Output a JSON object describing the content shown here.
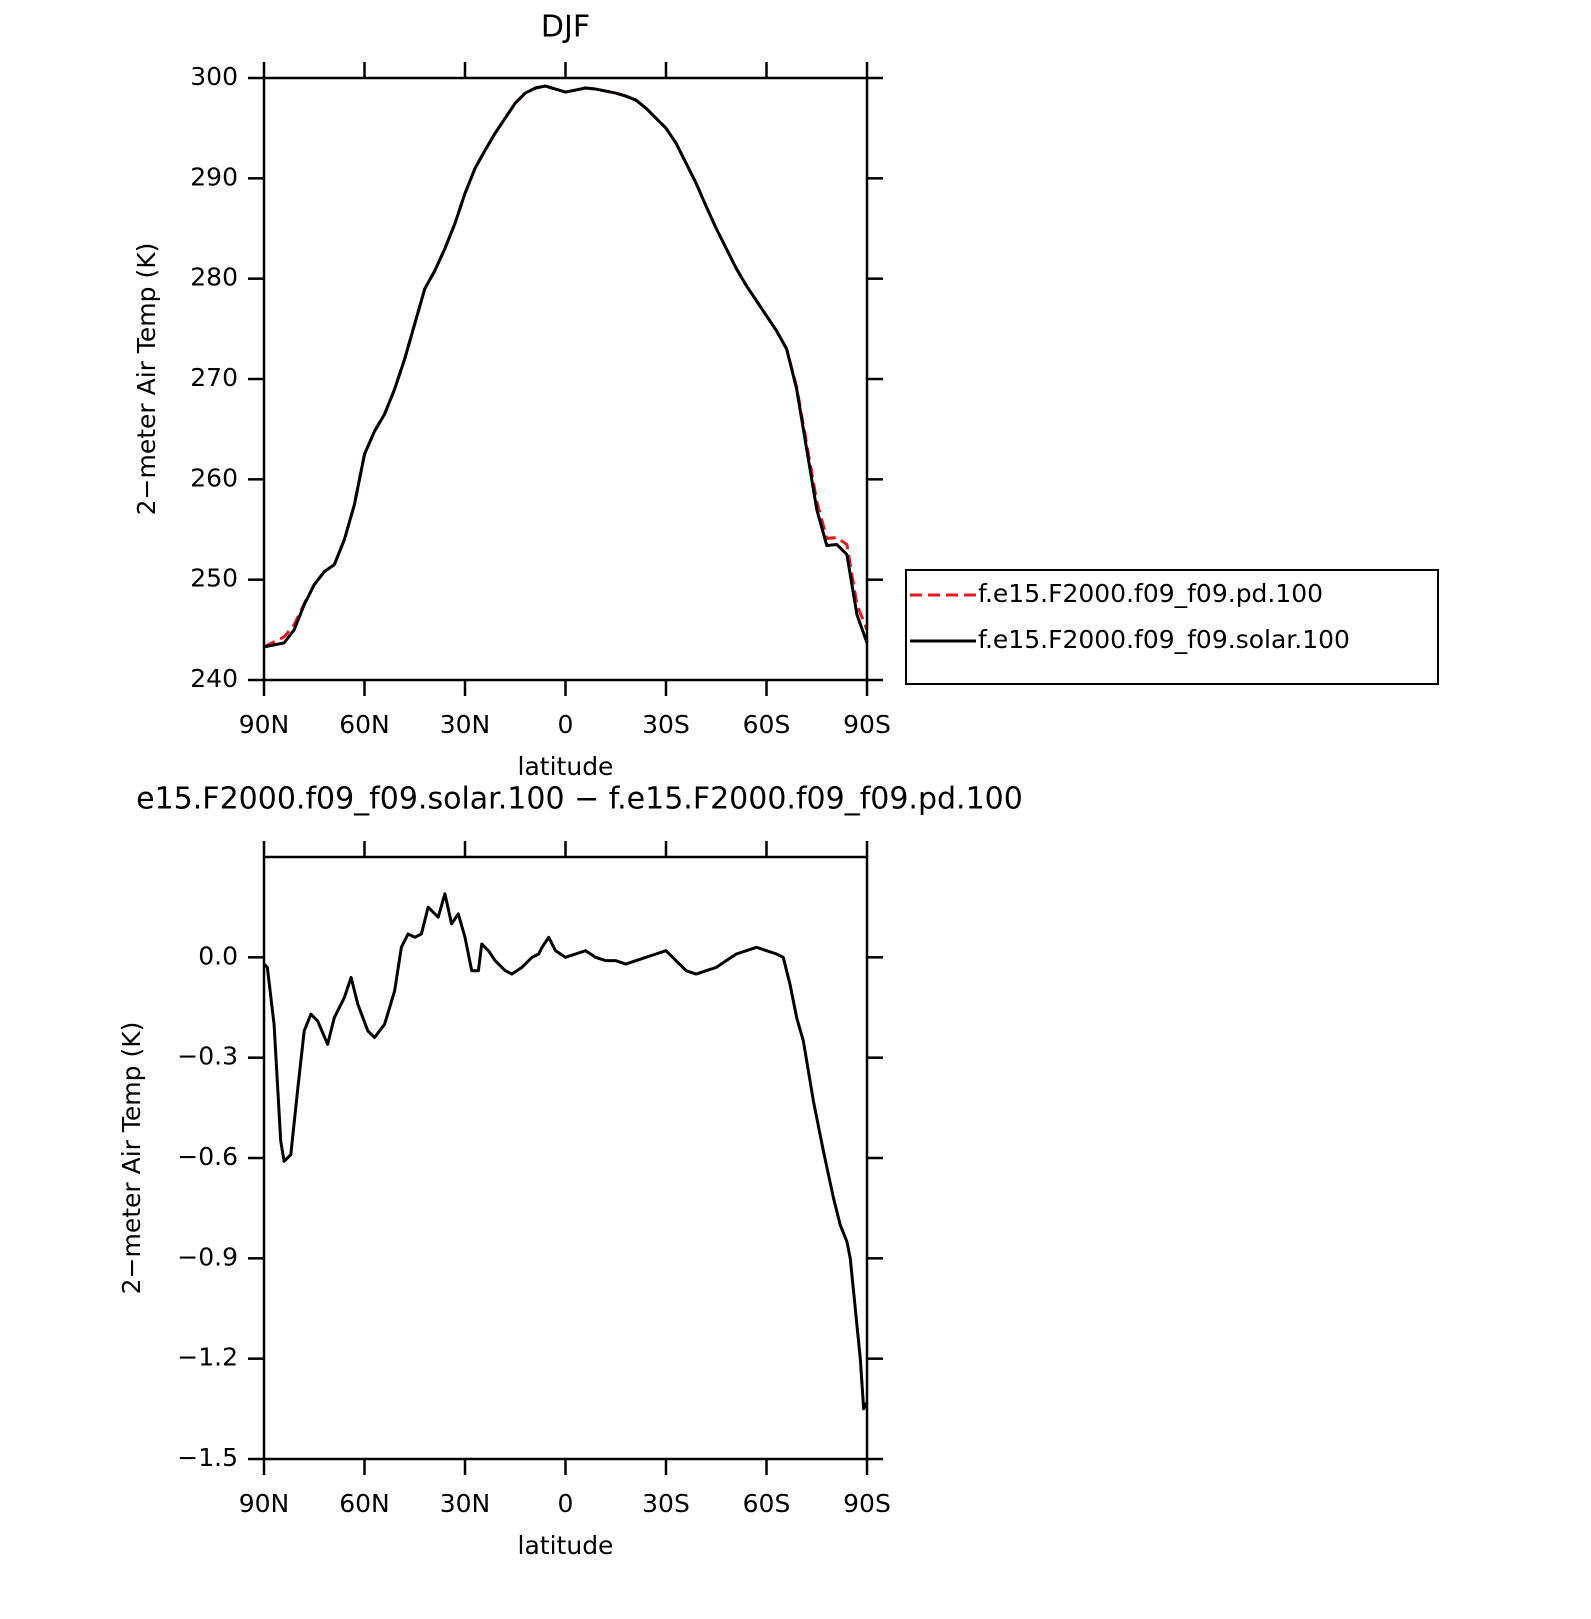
{
  "chart_data": [
    {
      "type": "line",
      "title": "DJF",
      "xlabel": "latitude",
      "ylabel": "2−meter Air Temp (K)",
      "x": [
        90,
        87,
        84,
        81,
        78,
        75,
        72,
        69,
        66,
        63,
        60,
        57,
        54,
        51,
        48,
        45,
        42,
        39,
        36,
        33,
        30,
        27,
        24,
        21,
        18,
        15,
        12,
        9,
        6,
        3,
        0,
        -3,
        -6,
        -9,
        -12,
        -15,
        -18,
        -21,
        -24,
        -27,
        -30,
        -33,
        -36,
        -39,
        -42,
        -45,
        -48,
        -51,
        -54,
        -57,
        -60,
        -63,
        -66,
        -69,
        -72,
        -75,
        -78,
        -81,
        -84,
        -87,
        -90
      ],
      "series": [
        {
          "name": "f.e15.F2000.f09_f09.pd.100",
          "color": "#e41a1c",
          "dashed": true,
          "values": [
            243.3,
            243.8,
            244.3,
            245.5,
            247.6,
            249.5,
            250.8,
            251.5,
            254,
            257.5,
            262.5,
            264.8,
            266.5,
            269,
            272,
            275.5,
            279,
            280.8,
            283,
            285.5,
            288.5,
            291,
            292.8,
            294.5,
            296,
            297.5,
            298.5,
            299,
            299.2,
            298.9,
            298.6,
            298.8,
            299,
            298.9,
            298.7,
            298.5,
            298.2,
            297.8,
            297,
            296,
            295,
            293.5,
            291.5,
            289.5,
            287.2,
            285,
            283,
            281,
            279.3,
            277.8,
            276.3,
            274.8,
            273,
            269.2,
            263.5,
            257.8,
            254.1,
            254.2,
            253.5,
            247.5,
            245
          ]
        },
        {
          "name": "f.e15.F2000.f09_f09.solar.100",
          "color": "#000000",
          "dashed": false,
          "values": [
            243.3,
            243.5,
            243.7,
            245,
            247.5,
            249.5,
            250.8,
            251.5,
            254,
            257.5,
            262.5,
            264.8,
            266.5,
            269,
            272,
            275.5,
            279,
            280.8,
            283,
            285.5,
            288.5,
            291,
            292.8,
            294.5,
            296,
            297.5,
            298.5,
            299,
            299.2,
            298.9,
            298.6,
            298.8,
            299,
            298.9,
            298.7,
            298.5,
            298.2,
            297.8,
            297,
            296,
            295,
            293.5,
            291.5,
            289.5,
            287.2,
            285,
            283,
            281,
            279.3,
            277.8,
            276.3,
            274.8,
            273,
            269,
            263,
            257,
            253.4,
            253.5,
            252.5,
            246.5,
            243.7
          ]
        }
      ],
      "xlim": [
        90,
        -90
      ],
      "xticks": [
        {
          "value": 90,
          "label": "90N"
        },
        {
          "value": 60,
          "label": "60N"
        },
        {
          "value": 30,
          "label": "30N"
        },
        0,
        {
          "value": -30,
          "label": "30S"
        },
        {
          "value": -60,
          "label": "60S"
        },
        {
          "value": -90,
          "label": "90S"
        }
      ],
      "ylim": [
        240,
        300
      ],
      "yticks": [
        240,
        250,
        260,
        270,
        280,
        290,
        300
      ],
      "legend": "outside-right"
    },
    {
      "type": "line",
      "title": "e15.F2000.f09_f09.solar.100 − f.e15.F2000.f09_f09.pd.100",
      "xlabel": "latitude",
      "ylabel": "2−meter Air Temp (K)",
      "x": [
        90,
        89,
        87,
        85,
        84,
        82,
        80,
        78,
        76,
        74,
        71,
        69,
        66,
        64,
        62,
        59,
        57,
        54,
        51,
        49,
        47,
        45,
        43,
        41,
        38,
        36,
        34,
        32,
        30,
        28,
        26,
        25,
        23,
        21,
        18,
        16,
        13,
        10,
        8,
        7,
        5,
        3,
        0,
        -3,
        -6,
        -9,
        -12,
        -15,
        -18,
        -21,
        -24,
        -27,
        -30,
        -33,
        -36,
        -39,
        -42,
        -45,
        -48,
        -51,
        -54,
        -57,
        -60,
        -63,
        -65,
        -67,
        -69,
        -71,
        -74,
        -77,
        -80,
        -82,
        -84,
        -85,
        -86,
        -87,
        -88,
        -89,
        -90
      ],
      "series": [
        {
          "color": "#000000",
          "dashed": false,
          "values": [
            -0.02,
            -0.03,
            -0.2,
            -0.55,
            -0.61,
            -0.59,
            -0.4,
            -0.22,
            -0.17,
            -0.19,
            -0.26,
            -0.18,
            -0.12,
            -0.06,
            -0.14,
            -0.22,
            -0.24,
            -0.2,
            -0.1,
            0.03,
            0.07,
            0.06,
            0.07,
            0.15,
            0.12,
            0.19,
            0.1,
            0.13,
            0.06,
            -0.04,
            -0.04,
            0.04,
            0.02,
            -0.01,
            -0.04,
            -0.05,
            -0.03,
            0.0,
            0.01,
            0.03,
            0.06,
            0.02,
            0.0,
            0.01,
            0.02,
            0.0,
            -0.01,
            -0.01,
            -0.02,
            -0.01,
            0.0,
            0.01,
            0.02,
            -0.01,
            -0.04,
            -0.05,
            -0.04,
            -0.03,
            -0.01,
            0.01,
            0.02,
            0.03,
            0.02,
            0.01,
            0.0,
            -0.08,
            -0.18,
            -0.25,
            -0.43,
            -0.58,
            -0.72,
            -0.8,
            -0.85,
            -0.9,
            -1.0,
            -1.1,
            -1.2,
            -1.35,
            -1.33
          ]
        }
      ],
      "xlim": [
        90,
        -90
      ],
      "xticks": [
        {
          "value": 90,
          "label": "90N"
        },
        {
          "value": 60,
          "label": "60N"
        },
        {
          "value": 30,
          "label": "30N"
        },
        0,
        {
          "value": -30,
          "label": "30S"
        },
        {
          "value": -60,
          "label": "60S"
        },
        {
          "value": -90,
          "label": "90S"
        }
      ],
      "ylim": [
        -1.5,
        0.3
      ],
      "yticks": [
        {
          "value": -1.5,
          "label": "−1.5"
        },
        {
          "value": -1.2,
          "label": "−1.2"
        },
        {
          "value": -0.9,
          "label": "−0.9"
        },
        {
          "value": -0.6,
          "label": "−0.6"
        },
        {
          "value": -0.3,
          "label": "−0.3"
        },
        {
          "value": 0,
          "label": "0.0"
        }
      ]
    }
  ]
}
